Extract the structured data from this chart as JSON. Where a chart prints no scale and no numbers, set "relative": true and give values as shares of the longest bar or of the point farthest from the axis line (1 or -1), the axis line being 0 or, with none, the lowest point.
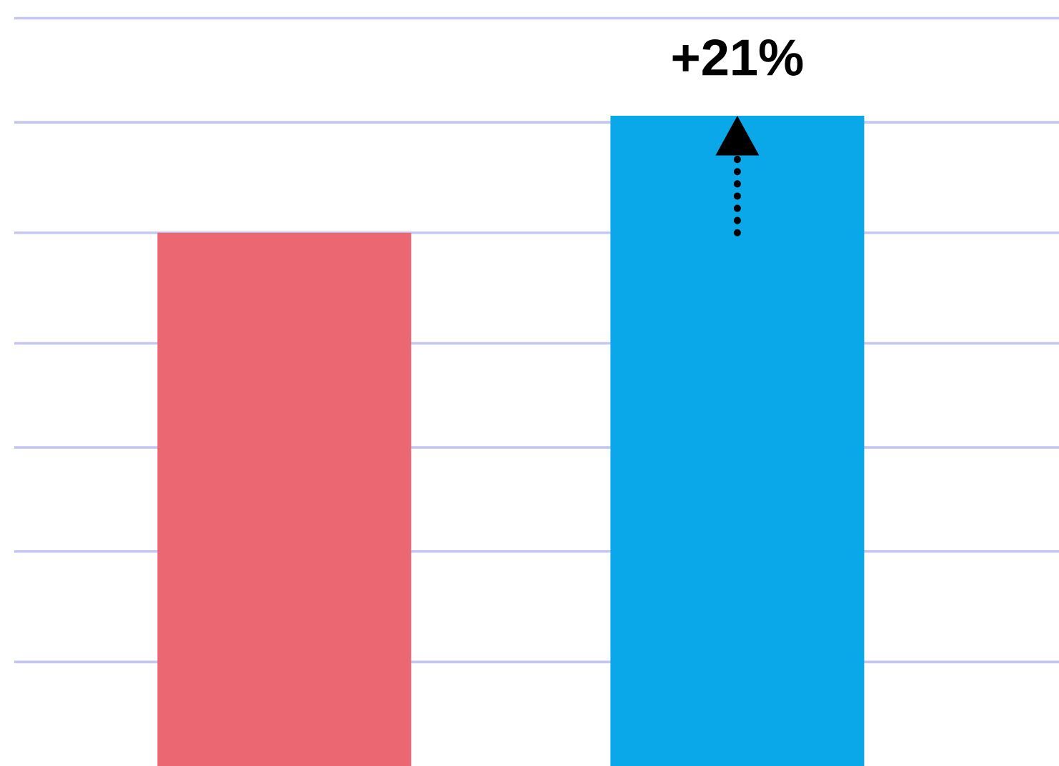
{
  "chart_data": {
    "type": "bar",
    "relative": true,
    "categories": [
      null,
      null
    ],
    "values": [
      0.82,
      1
    ],
    "colors": [
      "#eb6771",
      "#0aa8e8"
    ],
    "ref_lines": [
      {
        "axis": "y",
        "value": 0.16,
        "color": "#c6c6f2"
      },
      {
        "axis": "y",
        "value": 0.33,
        "color": "#c6c6f2"
      },
      {
        "axis": "y",
        "value": 0.49,
        "color": "#c6c6f2"
      },
      {
        "axis": "y",
        "value": 0.65,
        "color": "#c6c6f2"
      },
      {
        "axis": "y",
        "value": 0.82,
        "color": "#c6c6f2"
      },
      {
        "axis": "y",
        "value": 0.99,
        "color": "#c6c6f2"
      },
      {
        "axis": "y",
        "value": 1.15,
        "color": "#c6c6f2"
      }
    ],
    "annotations": [
      {
        "text": "+21%",
        "y": 1
      }
    ]
  }
}
